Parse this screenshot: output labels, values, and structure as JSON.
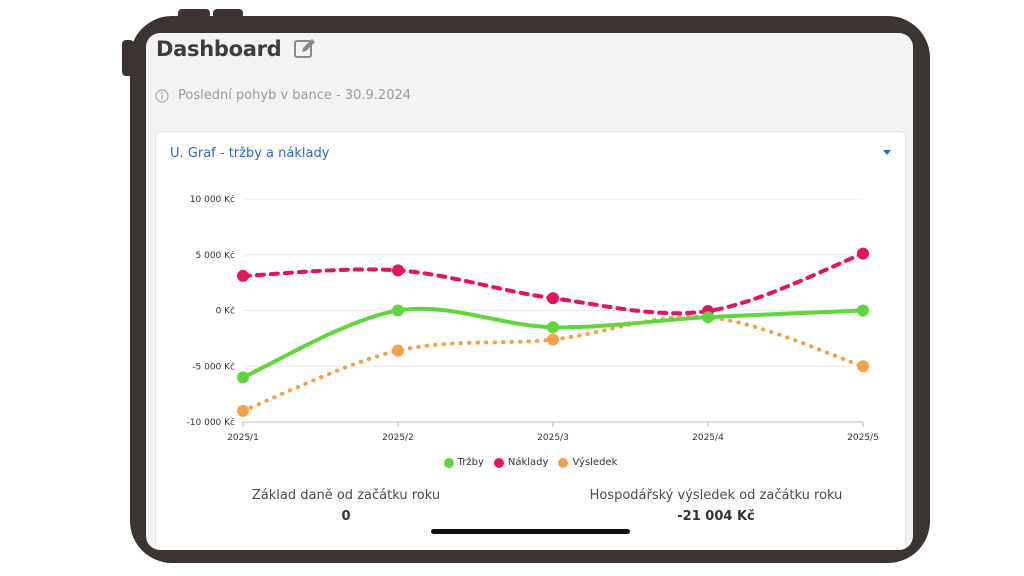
{
  "dashboard": {
    "title": "Dashboard",
    "info_text": "Poslední pohyb v bance - 30.9.2024"
  },
  "card": {
    "title": "U. Graf - tržby a náklady"
  },
  "chart_data": {
    "type": "line",
    "categories": [
      "2025/1",
      "2025/2",
      "2025/3",
      "2025/4",
      "2025/5"
    ],
    "ylim": [
      -10000,
      10000
    ],
    "y_ticks": [
      10000,
      5000,
      0,
      -5000,
      -10000
    ],
    "y_tick_labels": [
      "10 000 Kč",
      "5 000 Kč",
      "0 Kč",
      "-5 000 Kč",
      "-10 000 Kč"
    ],
    "grid": true,
    "legend_position": "bottom",
    "series": [
      {
        "name": "Tržby",
        "color": "#5fd63c",
        "style": "solid",
        "values": [
          -6000,
          0,
          -1500,
          -600,
          0
        ]
      },
      {
        "name": "Náklady",
        "color": "#e2145f",
        "style": "dashed",
        "values": [
          3100,
          3600,
          1100,
          -50,
          5100
        ]
      },
      {
        "name": "Výsledek",
        "color": "#f7a04a",
        "style": "dotted",
        "values": [
          -9000,
          -3600,
          -2600,
          -600,
          -5000
        ]
      }
    ]
  },
  "stats": [
    {
      "label": "Základ daně od začátku roku",
      "value": "0"
    },
    {
      "label": "Hospodářský výsledek od začátku roku",
      "value": "-21 004 Kč"
    }
  ]
}
